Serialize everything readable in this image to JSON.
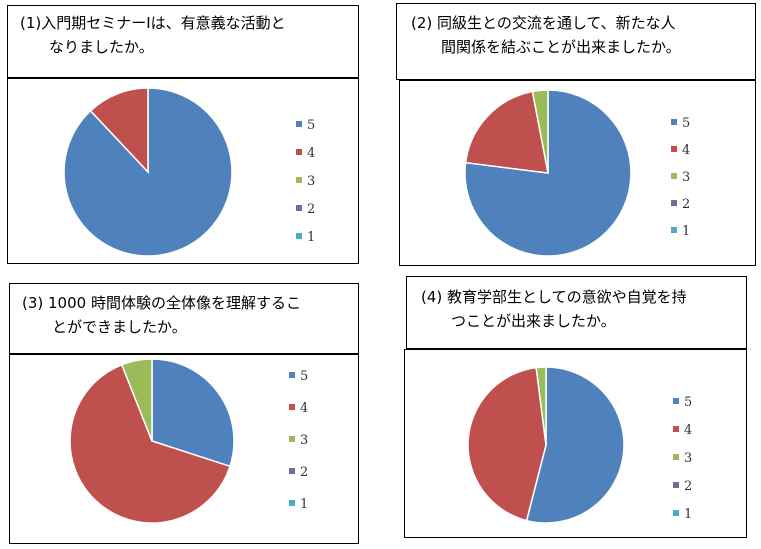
{
  "colors": {
    "s5": "#4F81BD",
    "s4": "#C0504D",
    "s3": "#9BBB59",
    "s2": "#8064A2",
    "s1": "#4BACC6"
  },
  "questions": [
    {
      "line1": "(1)入門期セミナーⅠは、有意義な活動と",
      "line2": "なりましたか。"
    },
    {
      "line1": "(2) 同級生との交流を通して、新たな人",
      "line2": "間関係を結ぶことが出来ましたか。"
    },
    {
      "line1": "(3) 1000 時間体験の全体像を理解するこ",
      "line2": "とができましたか。"
    },
    {
      "line1": "(4) 教育学部生としての意欲や自覚を持",
      "line2": "つことが出来ましたか。"
    }
  ],
  "chart_data": [
    {
      "type": "pie",
      "categories": [
        "5",
        "4",
        "3",
        "2",
        "1"
      ],
      "values": [
        88,
        12,
        0,
        0,
        0
      ]
    },
    {
      "type": "pie",
      "categories": [
        "5",
        "4",
        "3",
        "2",
        "1"
      ],
      "values": [
        77,
        20,
        3,
        0,
        0
      ]
    },
    {
      "type": "pie",
      "categories": [
        "5",
        "4",
        "3",
        "2",
        "1"
      ],
      "values": [
        30,
        64,
        6,
        0,
        0
      ]
    },
    {
      "type": "pie",
      "categories": [
        "5",
        "4",
        "3",
        "2",
        "1"
      ],
      "values": [
        54,
        44,
        2,
        0,
        0
      ]
    }
  ]
}
